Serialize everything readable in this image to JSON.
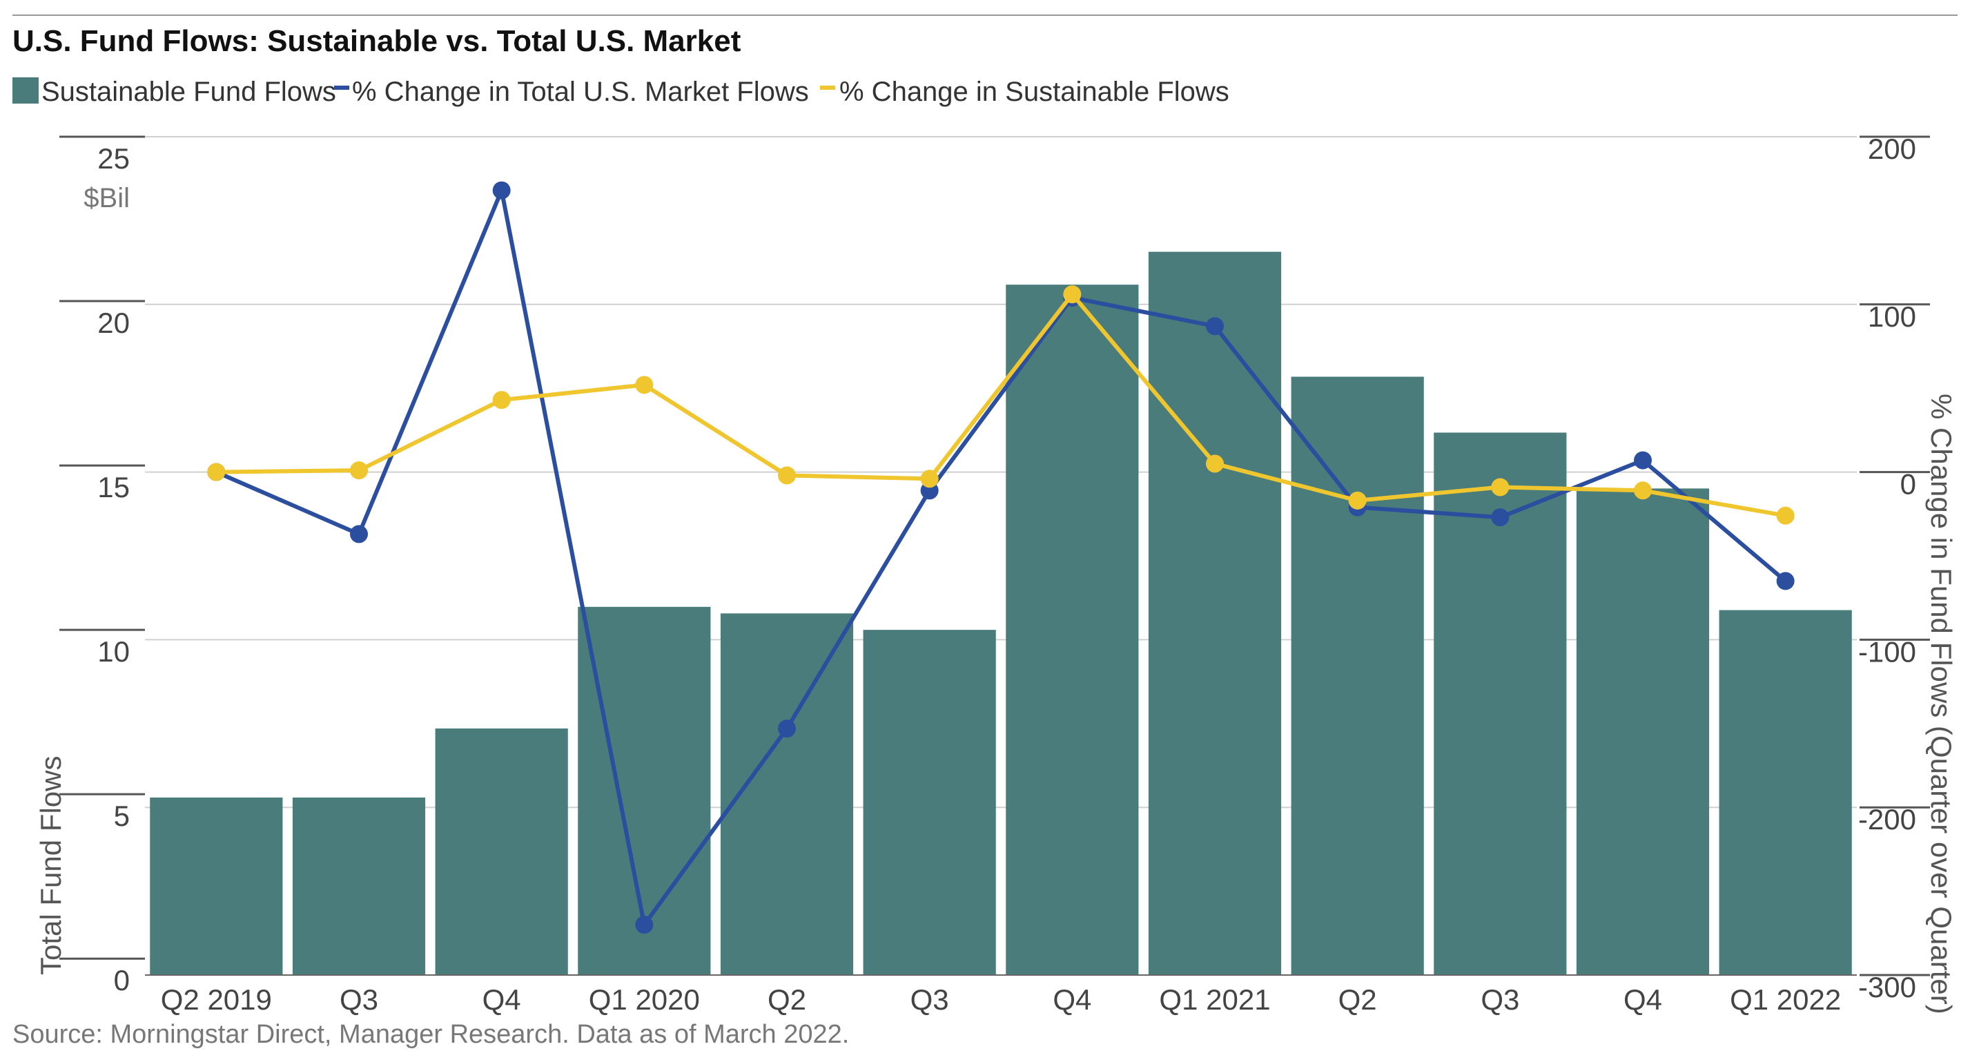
{
  "chart_data": {
    "type": "bar",
    "title": "U.S. Fund Flows: Sustainable vs. Total U.S. Market",
    "source": "Source: Morningstar Direct, Manager Research. Data as of March 2022.",
    "categories": [
      "Q2 2019",
      "Q3",
      "Q4",
      "Q1 2020",
      "Q2",
      "Q3",
      "Q4",
      "Q1 2021",
      "Q2",
      "Q3",
      "Q4",
      "Q1 2022"
    ],
    "y_left": {
      "label": "Total Fund Flows",
      "unit": "$Bil",
      "ticks": [
        0,
        5,
        10,
        15,
        20,
        25
      ],
      "ylim": [
        -0.5,
        25
      ]
    },
    "y_right": {
      "label": "% Change in Fund Flows (Quarter over Quarter)",
      "ticks": [
        -300,
        -200,
        -100,
        0,
        100,
        200
      ],
      "ylim": [
        -300,
        200
      ]
    },
    "series": [
      {
        "name": "Sustainable Fund Flows",
        "kind": "bar",
        "axis": "left",
        "color": "#4a7c7b",
        "values": [
          4.9,
          4.9,
          7.0,
          10.7,
          10.5,
          10.0,
          20.5,
          21.5,
          17.7,
          16.0,
          14.3,
          10.6
        ]
      },
      {
        "name": "% Change in Total U.S. Market Flows",
        "kind": "line",
        "axis": "right",
        "color": "#2b4f9e",
        "values": [
          0,
          -37,
          168,
          -270,
          -153,
          -11,
          104,
          87,
          -21,
          -27,
          7,
          -65
        ]
      },
      {
        "name": "% Change in Sustainable Flows",
        "kind": "line",
        "axis": "right",
        "color": "#f0c62e",
        "values": [
          0,
          1,
          43,
          52,
          -2,
          -4,
          106,
          5,
          -17,
          -9,
          -11,
          -26
        ]
      }
    ],
    "legend_position": "top-left",
    "grid": true
  }
}
